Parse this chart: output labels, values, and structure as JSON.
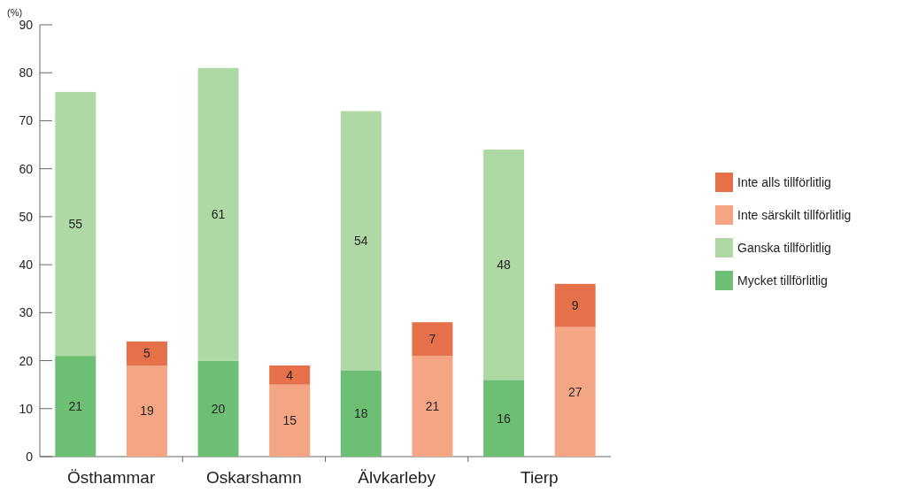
{
  "chart_data": {
    "type": "bar",
    "stacked": true,
    "ylabel": "(%)",
    "categories": [
      "Östhammar",
      null,
      "Oskarshamn",
      null,
      "Älvkarleby",
      null,
      "Tierp",
      null
    ],
    "series": [
      {
        "name": "Mycket tillförlitlig",
        "color": "#6dbf73",
        "values": [
          21,
          null,
          20,
          null,
          18,
          null,
          16,
          null
        ]
      },
      {
        "name": "Ganska tillförlitlig",
        "color": "#aed9a4",
        "values": [
          55,
          null,
          61,
          null,
          54,
          null,
          48,
          null
        ]
      },
      {
        "name": "Inte särskilt tillförlitlig",
        "color": "#f4a684",
        "values": [
          null,
          19,
          null,
          15,
          null,
          21,
          null,
          27
        ]
      },
      {
        "name": "Inte alls tillförlitlig",
        "color": "#e5704a",
        "values": [
          null,
          5,
          null,
          4,
          null,
          7,
          null,
          9
        ]
      }
    ],
    "ylim": [
      0,
      90
    ],
    "yticks": [
      0,
      10,
      20,
      30,
      40,
      50,
      60,
      70,
      80,
      90
    ],
    "data_labels": true,
    "legend": "right",
    "grid": false
  }
}
